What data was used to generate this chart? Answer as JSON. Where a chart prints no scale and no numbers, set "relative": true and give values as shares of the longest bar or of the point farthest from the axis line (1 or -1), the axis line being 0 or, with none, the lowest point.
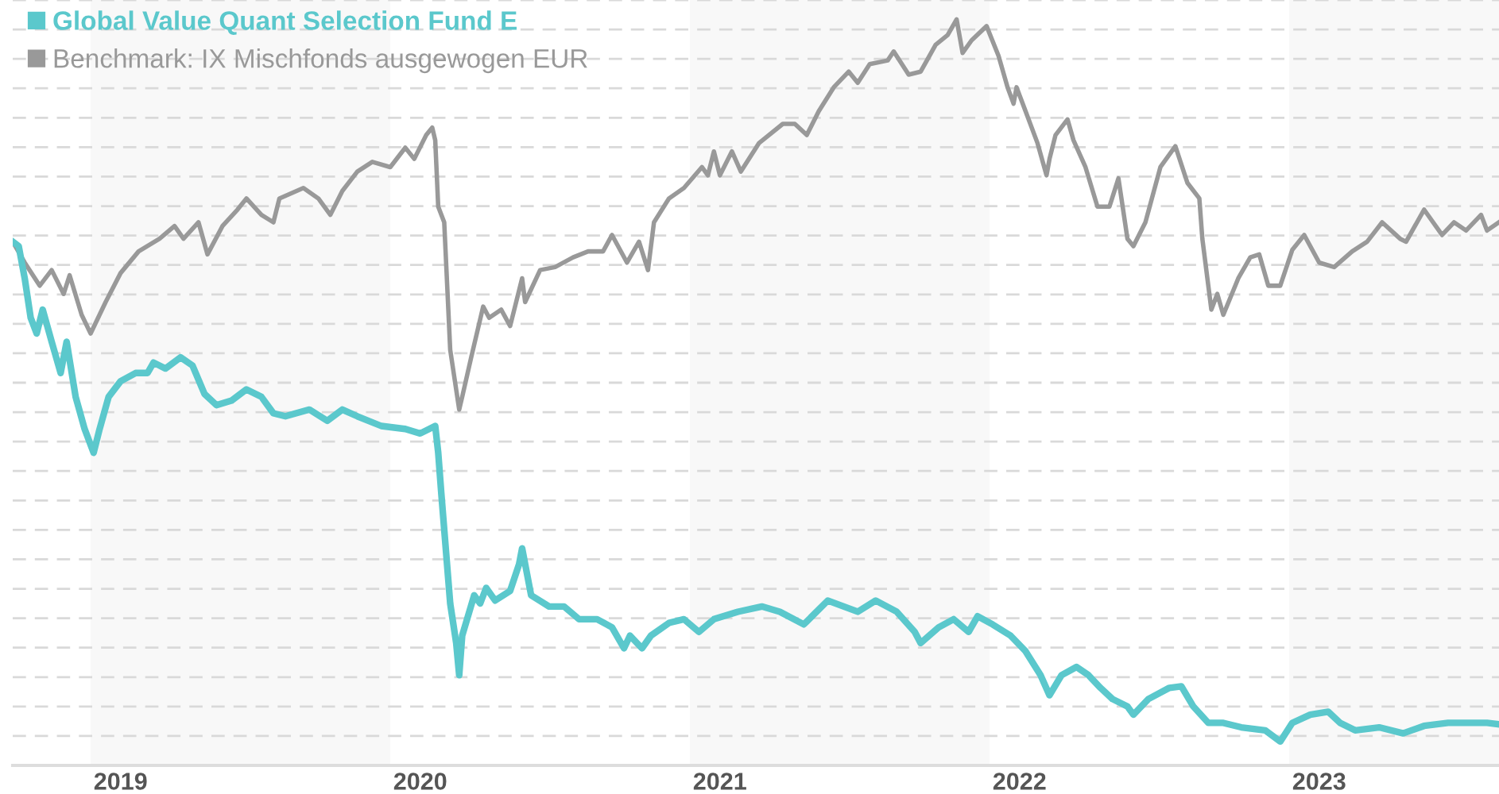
{
  "chart_data": {
    "type": "line",
    "relative": true,
    "xlim": [
      2018.74,
      2023.7
    ],
    "xticks": [
      {
        "value": 2019.1,
        "label": "2019"
      },
      {
        "value": 2020.1,
        "label": "2020"
      },
      {
        "value": 2021.1,
        "label": "2021"
      },
      {
        "value": 2022.1,
        "label": "2022"
      },
      {
        "value": 2023.1,
        "label": "2023"
      }
    ],
    "tick_labels": "x",
    "grid": "y",
    "legend": "top left",
    "line_style": "solid",
    "marker": "none",
    "bands": [
      {
        "axis": "x",
        "from": 2019,
        "to": 2020,
        "color": "#f8f8f8"
      },
      {
        "axis": "x",
        "from": 2021,
        "to": 2022,
        "color": "#f8f8f8"
      },
      {
        "axis": "x",
        "from": 2023,
        "to": 2023.7,
        "color": "#f8f8f8"
      }
    ],
    "series": [
      {
        "name": "Global Value Quant Selection Fund E",
        "color": "#5bc8cc",
        "x": [
          2018.74,
          2018.76,
          2018.78,
          2018.8,
          2018.82,
          2018.84,
          2018.87,
          2018.9,
          2018.92,
          2018.95,
          2018.98,
          2019.01,
          2019.03,
          2019.06,
          2019.1,
          2019.15,
          2019.19,
          2019.21,
          2019.25,
          2019.3,
          2019.34,
          2019.38,
          2019.42,
          2019.47,
          2019.52,
          2019.57,
          2019.61,
          2019.65,
          2019.73,
          2019.79,
          2019.84,
          2019.89,
          2019.97,
          2020.05,
          2020.1,
          2020.15,
          2020.16,
          2020.17,
          2020.2,
          2020.22,
          2020.23,
          2020.24,
          2020.28,
          2020.3,
          2020.32,
          2020.35,
          2020.4,
          2020.43,
          2020.44,
          2020.47,
          2020.53,
          2020.58,
          2020.63,
          2020.69,
          2020.74,
          2020.78,
          2020.8,
          2020.84,
          2020.87,
          2020.93,
          2020.98,
          2021.03,
          2021.08,
          2021.16,
          2021.24,
          2021.3,
          2021.38,
          2021.46,
          2021.56,
          2021.62,
          2021.69,
          2021.75,
          2021.77,
          2021.83,
          2021.88,
          2021.93,
          2021.96,
          2022.01,
          2022.07,
          2022.12,
          2022.17,
          2022.2,
          2022.24,
          2022.29,
          2022.33,
          2022.37,
          2022.41,
          2022.46,
          2022.48,
          2022.53,
          2022.6,
          2022.64,
          2022.68,
          2022.73,
          2022.78,
          2022.84,
          2022.92,
          2022.97,
          2023.01,
          2023.07,
          2023.13,
          2023.17,
          2023.22,
          2023.3,
          2023.38,
          2023.45,
          2023.53,
          2023.61,
          2023.66,
          2023.7
        ],
        "values": [
          0.702,
          0.696,
          0.653,
          0.6,
          0.579,
          0.611,
          0.568,
          0.526,
          0.568,
          0.494,
          0.451,
          0.419,
          0.451,
          0.494,
          0.515,
          0.526,
          0.526,
          0.54,
          0.532,
          0.547,
          0.536,
          0.498,
          0.483,
          0.489,
          0.504,
          0.494,
          0.472,
          0.468,
          0.477,
          0.462,
          0.477,
          0.468,
          0.455,
          0.451,
          0.445,
          0.455,
          0.419,
          0.366,
          0.217,
          0.164,
          0.121,
          0.174,
          0.228,
          0.217,
          0.238,
          0.221,
          0.234,
          0.27,
          0.291,
          0.228,
          0.213,
          0.213,
          0.196,
          0.196,
          0.185,
          0.157,
          0.174,
          0.157,
          0.174,
          0.191,
          0.196,
          0.179,
          0.196,
          0.206,
          0.213,
          0.206,
          0.189,
          0.221,
          0.206,
          0.221,
          0.206,
          0.179,
          0.164,
          0.185,
          0.196,
          0.179,
          0.2,
          0.189,
          0.174,
          0.153,
          0.121,
          0.094,
          0.121,
          0.132,
          0.121,
          0.104,
          0.089,
          0.079,
          0.068,
          0.089,
          0.104,
          0.106,
          0.079,
          0.057,
          0.057,
          0.051,
          0.047,
          0.032,
          0.057,
          0.068,
          0.072,
          0.057,
          0.047,
          0.051,
          0.043,
          0.053,
          0.057,
          0.057,
          0.057,
          0.055
        ]
      },
      {
        "name": "Benchmark: IX Mischfonds ausgewogen EUR",
        "color": "#999999",
        "x": [
          2018.74,
          2018.78,
          2018.83,
          2018.87,
          2018.91,
          2018.93,
          2018.97,
          2019.0,
          2019.05,
          2019.1,
          2019.16,
          2019.23,
          2019.28,
          2019.31,
          2019.36,
          2019.39,
          2019.44,
          2019.49,
          2019.52,
          2019.57,
          2019.61,
          2019.63,
          2019.71,
          2019.76,
          2019.8,
          2019.84,
          2019.89,
          2019.94,
          2020.0,
          2020.05,
          2020.08,
          2020.12,
          2020.14,
          2020.15,
          2020.16,
          2020.18,
          2020.2,
          2020.23,
          2020.24,
          2020.27,
          2020.31,
          2020.33,
          2020.37,
          2020.4,
          2020.44,
          2020.45,
          2020.5,
          2020.55,
          2020.61,
          2020.66,
          2020.71,
          2020.74,
          2020.79,
          2020.83,
          2020.86,
          2020.88,
          2020.93,
          2020.98,
          2021.04,
          2021.06,
          2021.08,
          2021.1,
          2021.14,
          2021.17,
          2021.23,
          2021.31,
          2021.35,
          2021.39,
          2021.43,
          2021.48,
          2021.53,
          2021.56,
          2021.6,
          2021.66,
          2021.68,
          2021.73,
          2021.77,
          2021.82,
          2021.86,
          2021.89,
          2021.91,
          2021.94,
          2021.99,
          2022.03,
          2022.06,
          2022.08,
          2022.09,
          2022.12,
          2022.16,
          2022.19,
          2022.2,
          2022.22,
          2022.26,
          2022.28,
          2022.32,
          2022.36,
          2022.4,
          2022.43,
          2022.46,
          2022.48,
          2022.52,
          2022.57,
          2022.62,
          2022.66,
          2022.7,
          2022.71,
          2022.74,
          2022.76,
          2022.78,
          2022.83,
          2022.87,
          2022.9,
          2022.93,
          2022.97,
          2023.01,
          2023.05,
          2023.1,
          2023.15,
          2023.21,
          2023.26,
          2023.31,
          2023.37,
          2023.39,
          2023.45,
          2023.51,
          2023.55,
          2023.59,
          2023.64,
          2023.66,
          2023.7
        ],
        "values": [
          0.702,
          0.674,
          0.643,
          0.664,
          0.632,
          0.657,
          0.604,
          0.579,
          0.621,
          0.66,
          0.689,
          0.706,
          0.723,
          0.706,
          0.728,
          0.685,
          0.723,
          0.745,
          0.76,
          0.738,
          0.728,
          0.76,
          0.774,
          0.76,
          0.738,
          0.77,
          0.796,
          0.809,
          0.802,
          0.828,
          0.813,
          0.845,
          0.855,
          0.838,
          0.749,
          0.728,
          0.557,
          0.477,
          0.494,
          0.547,
          0.615,
          0.6,
          0.611,
          0.589,
          0.653,
          0.621,
          0.664,
          0.668,
          0.681,
          0.689,
          0.689,
          0.711,
          0.674,
          0.702,
          0.664,
          0.728,
          0.76,
          0.774,
          0.802,
          0.791,
          0.823,
          0.791,
          0.823,
          0.796,
          0.834,
          0.86,
          0.86,
          0.845,
          0.877,
          0.909,
          0.93,
          0.915,
          0.94,
          0.945,
          0.957,
          0.926,
          0.93,
          0.966,
          0.979,
          1.0,
          0.955,
          0.972,
          0.991,
          0.951,
          0.909,
          0.887,
          0.909,
          0.877,
          0.834,
          0.791,
          0.813,
          0.845,
          0.866,
          0.838,
          0.802,
          0.749,
          0.749,
          0.787,
          0.706,
          0.696,
          0.728,
          0.802,
          0.83,
          0.781,
          0.76,
          0.706,
          0.611,
          0.632,
          0.604,
          0.653,
          0.681,
          0.685,
          0.643,
          0.643,
          0.691,
          0.711,
          0.674,
          0.668,
          0.689,
          0.702,
          0.728,
          0.706,
          0.702,
          0.745,
          0.711,
          0.728,
          0.717,
          0.738,
          0.717,
          0.728
        ]
      }
    ]
  }
}
